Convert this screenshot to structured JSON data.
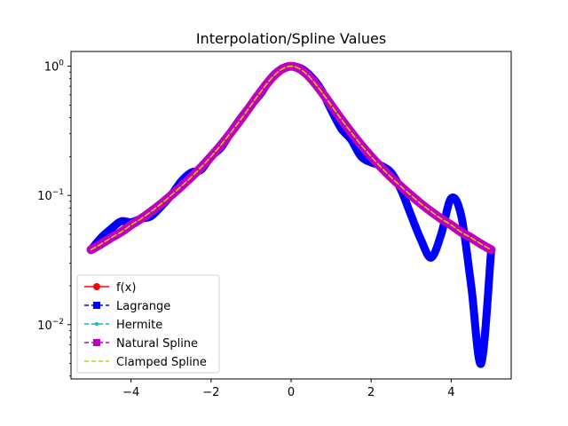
{
  "chart_data": {
    "type": "line",
    "title": "Interpolation/Spline Values",
    "xlabel": "",
    "ylabel": "",
    "xlim": [
      -5.5,
      5.5
    ],
    "ylim": [
      0.0038,
      1.3
    ],
    "yscale": "log",
    "grid": false,
    "legend_position": "lower-left",
    "x_ticks": [
      -4,
      -2,
      0,
      2,
      4
    ],
    "x_tick_labels": [
      "−4",
      "−2",
      "0",
      "2",
      "4"
    ],
    "y_ticks": [
      0.01,
      0.1,
      1
    ],
    "y_tick_labels": [
      {
        "base": "10",
        "exp": "−2"
      },
      {
        "base": "10",
        "exp": "−1"
      },
      {
        "base": "10",
        "exp": "0"
      }
    ],
    "x": [
      -5.0,
      -4.75,
      -4.5,
      -4.25,
      -4.0,
      -3.75,
      -3.5,
      -3.25,
      -3.0,
      -2.75,
      -2.5,
      -2.25,
      -2.0,
      -1.75,
      -1.5,
      -1.25,
      -1.0,
      -0.75,
      -0.5,
      -0.25,
      0.0,
      0.25,
      0.5,
      0.75,
      1.0,
      1.25,
      1.5,
      1.75,
      2.0,
      2.25,
      2.5,
      2.75,
      3.0,
      3.25,
      3.5,
      3.75,
      4.0,
      4.25,
      4.5,
      4.75,
      5.0
    ],
    "series": [
      {
        "name": "f(x)",
        "color": "#ff0000",
        "style": "solid",
        "marker": "circle",
        "values": [
          0.038,
          0.042,
          0.047,
          0.052,
          0.059,
          0.066,
          0.075,
          0.086,
          0.1,
          0.117,
          0.138,
          0.165,
          0.2,
          0.246,
          0.308,
          0.39,
          0.5,
          0.64,
          0.8,
          0.94,
          1.0,
          0.94,
          0.8,
          0.64,
          0.5,
          0.39,
          0.308,
          0.246,
          0.2,
          0.165,
          0.138,
          0.117,
          0.1,
          0.086,
          0.075,
          0.066,
          0.059,
          0.052,
          0.047,
          0.042,
          0.038
        ]
      },
      {
        "name": "Lagrange",
        "color": "#0000ff",
        "style": "dashed",
        "marker": "square",
        "values": [
          0.038,
          0.047,
          0.055,
          0.063,
          0.062,
          0.066,
          0.069,
          0.082,
          0.1,
          0.128,
          0.15,
          0.158,
          0.2,
          0.235,
          0.31,
          0.4,
          0.5,
          0.62,
          0.81,
          0.95,
          1.0,
          0.96,
          0.83,
          0.66,
          0.46,
          0.33,
          0.27,
          0.2,
          0.18,
          0.17,
          0.15,
          0.11,
          0.07,
          0.045,
          0.033,
          0.05,
          0.095,
          0.07,
          0.02,
          0.005,
          0.038
        ]
      },
      {
        "name": "Hermite",
        "color": "#00bfbf",
        "style": "dashed",
        "marker": "dot",
        "values": [
          0.038,
          0.042,
          0.047,
          0.052,
          0.059,
          0.066,
          0.075,
          0.086,
          0.1,
          0.117,
          0.138,
          0.165,
          0.2,
          0.246,
          0.308,
          0.39,
          0.5,
          0.64,
          0.8,
          0.94,
          1.0,
          0.94,
          0.8,
          0.64,
          0.5,
          0.39,
          0.308,
          0.246,
          0.2,
          0.165,
          0.138,
          0.117,
          0.1,
          0.086,
          0.075,
          0.066,
          0.059,
          0.052,
          0.047,
          0.042,
          0.038
        ]
      },
      {
        "name": "Natural Spline",
        "color": "#bf00bf",
        "style": "dashed",
        "marker": "square",
        "values": [
          0.038,
          0.042,
          0.047,
          0.052,
          0.059,
          0.066,
          0.075,
          0.086,
          0.1,
          0.117,
          0.138,
          0.165,
          0.2,
          0.246,
          0.308,
          0.39,
          0.5,
          0.64,
          0.8,
          0.94,
          1.0,
          0.94,
          0.8,
          0.64,
          0.5,
          0.39,
          0.308,
          0.246,
          0.2,
          0.165,
          0.138,
          0.117,
          0.1,
          0.086,
          0.075,
          0.066,
          0.059,
          0.052,
          0.047,
          0.042,
          0.038
        ]
      },
      {
        "name": "Clamped Spline",
        "color": "#cccc00",
        "style": "dashed",
        "marker": "none",
        "values": [
          0.038,
          0.042,
          0.047,
          0.052,
          0.059,
          0.066,
          0.075,
          0.086,
          0.1,
          0.117,
          0.138,
          0.165,
          0.2,
          0.246,
          0.308,
          0.39,
          0.5,
          0.64,
          0.8,
          0.94,
          1.0,
          0.94,
          0.8,
          0.64,
          0.5,
          0.39,
          0.308,
          0.246,
          0.2,
          0.165,
          0.138,
          0.117,
          0.1,
          0.086,
          0.075,
          0.066,
          0.059,
          0.052,
          0.047,
          0.042,
          0.038
        ]
      }
    ]
  }
}
